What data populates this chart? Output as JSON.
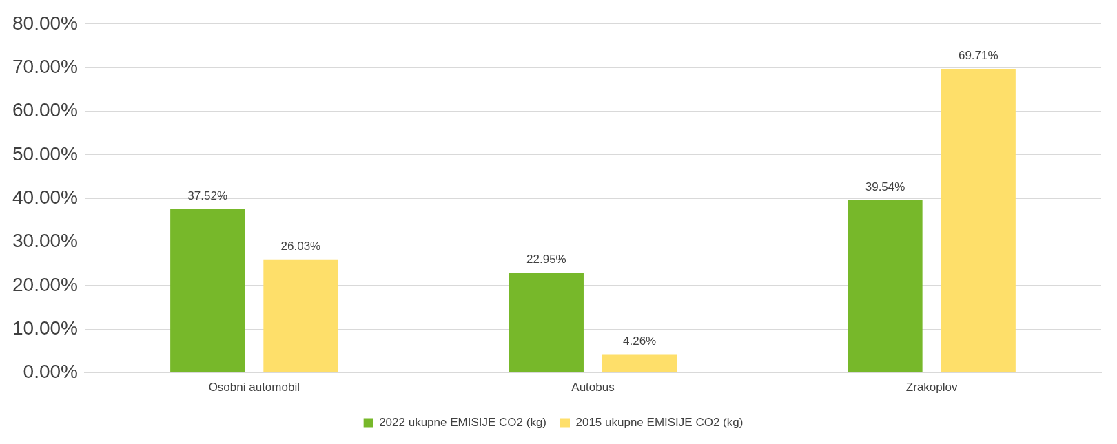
{
  "chart_data": {
    "type": "bar",
    "categories": [
      "Osobni automobil",
      "Autobus",
      "Zrakoplov"
    ],
    "series": [
      {
        "name": "2022 ukupne EMISIJE CO2 (kg)",
        "color": "#77b82a",
        "values": [
          37.52,
          22.95,
          39.54
        ],
        "value_labels": [
          "37.52%",
          "22.95%",
          "39.54%"
        ]
      },
      {
        "name": "2015 ukupne EMISIJE CO2 (kg)",
        "color": "#fedf6a",
        "values": [
          26.03,
          4.26,
          69.71
        ],
        "value_labels": [
          "26.03%",
          "4.26%",
          "69.71%"
        ]
      }
    ],
    "ylim": [
      0,
      80
    ],
    "yticks": [
      {
        "value": 0,
        "label": "0.00%"
      },
      {
        "value": 10,
        "label": "10.00%"
      },
      {
        "value": 20,
        "label": "20.00%"
      },
      {
        "value": 30,
        "label": "30.00%"
      },
      {
        "value": 40,
        "label": "40.00%"
      },
      {
        "value": 50,
        "label": "50.00%"
      },
      {
        "value": 60,
        "label": "60.00%"
      },
      {
        "value": 70,
        "label": "70.00%"
      },
      {
        "value": 80,
        "label": "80.00%"
      }
    ],
    "grid": "y",
    "legend": "bottom"
  }
}
